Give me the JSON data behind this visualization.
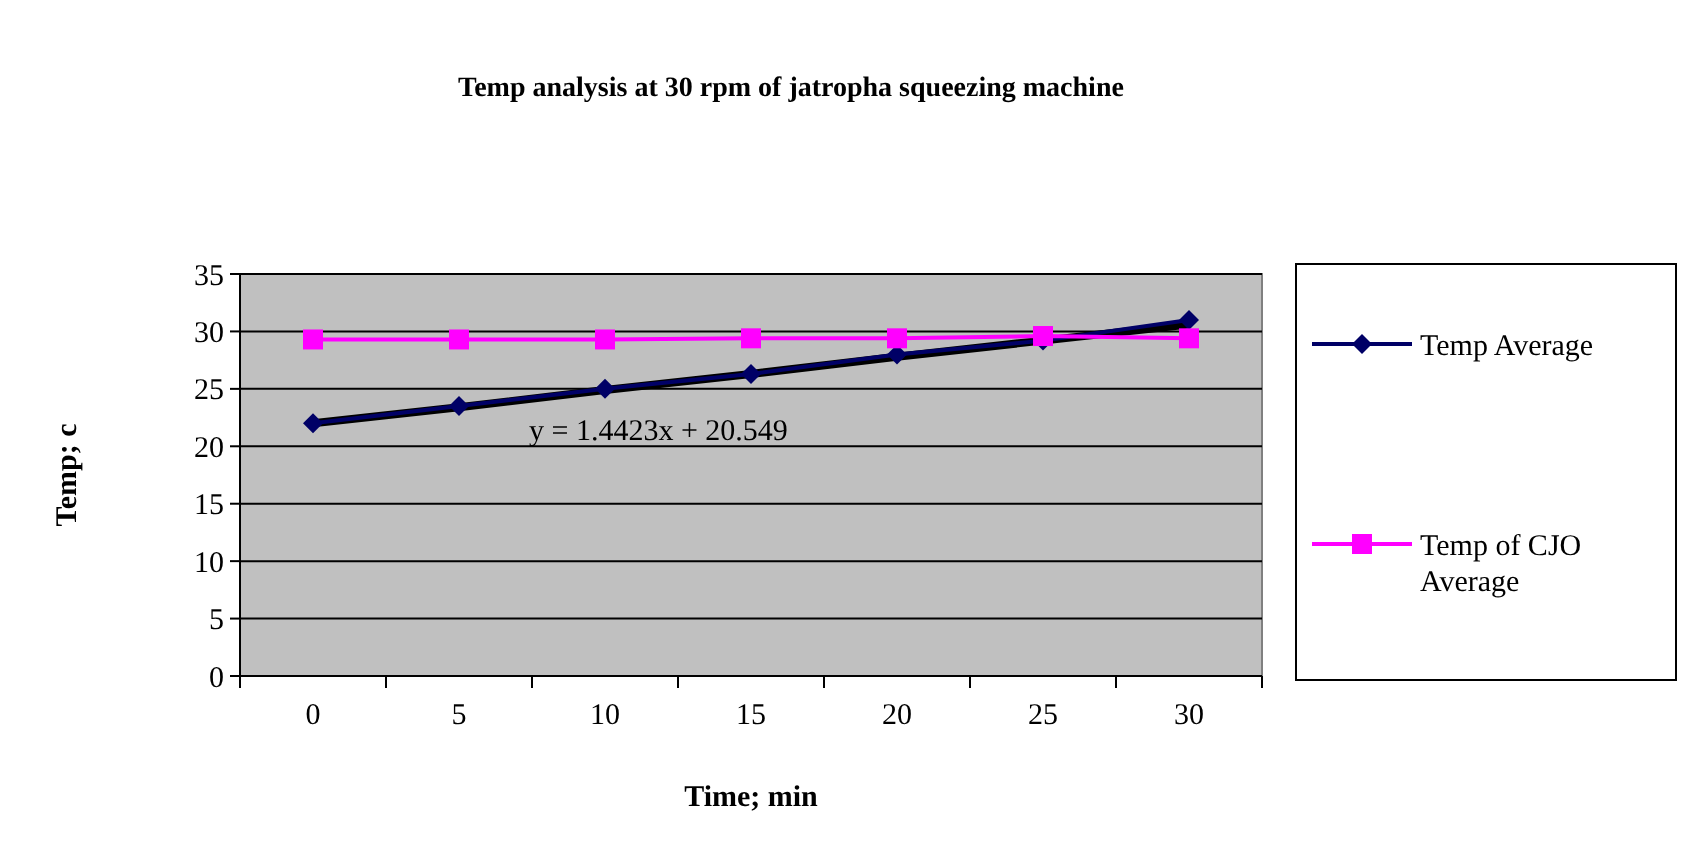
{
  "chart_data": {
    "type": "line",
    "title": "Temp analysis at 30 rpm of jatropha squeezing machine",
    "xlabel": "Time; min",
    "ylabel": "Temp; c",
    "categories": [
      "0",
      "5",
      "10",
      "15",
      "20",
      "25",
      "30"
    ],
    "series": [
      {
        "color": "#000000",
        "marker": "none",
        "values": [
          22.0,
          23.4,
          24.9,
          26.3,
          27.8,
          29.2,
          30.6
        ]
      },
      {
        "name": "Temp Average",
        "color": "#000066",
        "marker": "diamond",
        "values": [
          22,
          23.5,
          25,
          26.3,
          28,
          29.2,
          31
        ]
      },
      {
        "name": "Temp of CJO Average",
        "color": "#ff00ff",
        "marker": "square",
        "values": [
          29.3,
          29.3,
          29.3,
          29.4,
          29.4,
          29.6,
          29.4
        ]
      }
    ],
    "annotations": [
      "y = 1.4423x + 20.549"
    ],
    "ylim": [
      0,
      35
    ],
    "yticks": [
      0,
      5,
      10,
      15,
      20,
      25,
      30,
      35
    ],
    "grid": "y",
    "legend": "right"
  }
}
